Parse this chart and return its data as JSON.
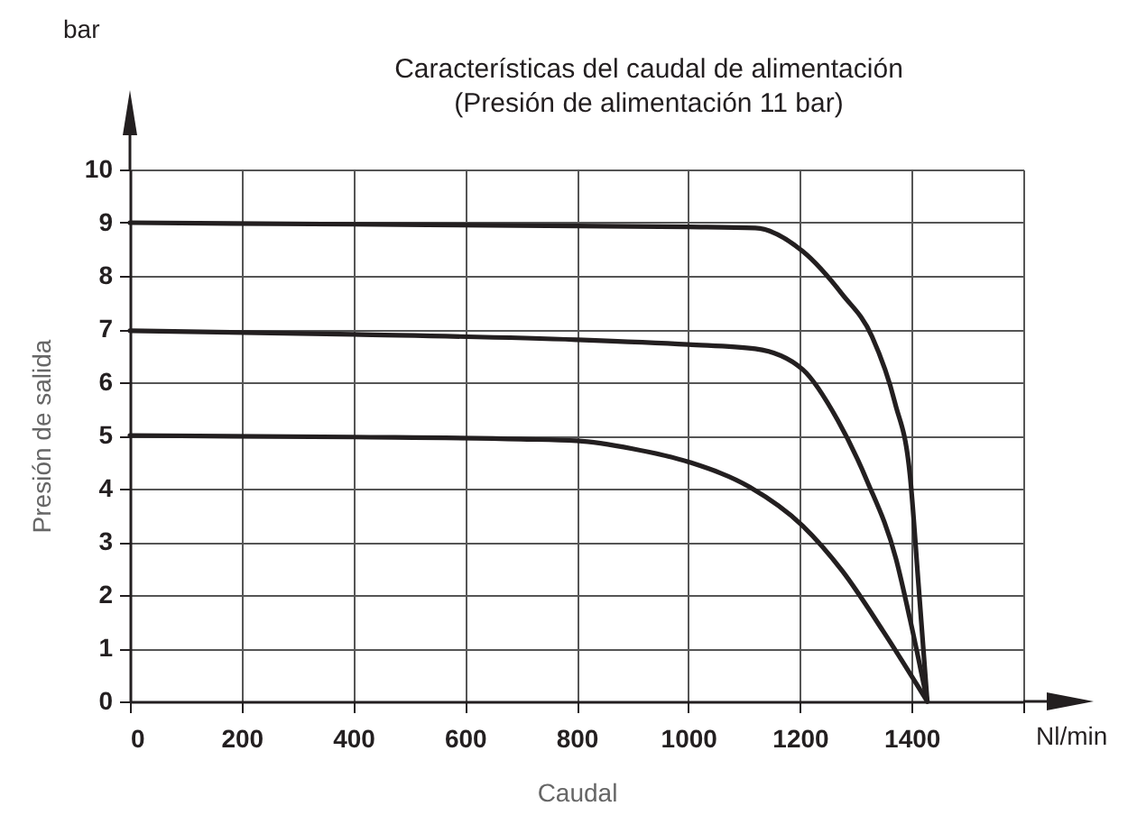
{
  "chart_data": {
    "type": "line",
    "title": "Características del caudal de alimentación",
    "subtitle": "(Presión de alimentación 11 bar)",
    "xlabel": "Caudal",
    "ylabel": "Presión de salida",
    "annotations": [
      "bar",
      "Nl/min"
    ],
    "xlim": [
      0,
      1600
    ],
    "ylim": [
      0,
      10
    ],
    "xticks": [
      0,
      200,
      400,
      600,
      800,
      1000,
      1200,
      1400,
      {
        "value": 1600,
        "label": null
      }
    ],
    "yticks": [
      0,
      1,
      2,
      3,
      4,
      5,
      6,
      7,
      8,
      9,
      10
    ],
    "grid": true,
    "legend": false,
    "marker": "none",
    "line_style": "solid",
    "series": [
      {
        "color": "#231f20",
        "x": [
          0,
          400,
          800,
          1000,
          1120,
          1205,
          1276,
          1329,
          1370,
          1397,
          1412,
          1428
        ],
        "values": [
          9.0,
          8.97,
          8.94,
          8.92,
          8.9,
          8.46,
          7.65,
          6.86,
          5.62,
          4.26,
          2.24,
          0
        ]
      },
      {
        "color": "#231f20",
        "x": [
          0,
          400,
          800,
          1000,
          1120,
          1205,
          1268,
          1320,
          1372,
          1397,
          1428
        ],
        "values": [
          6.97,
          6.9,
          6.8,
          6.71,
          6.63,
          6.24,
          5.28,
          4.15,
          2.68,
          1.55,
          0
        ]
      },
      {
        "color": "#231f20",
        "x": [
          0,
          400,
          700,
          800,
          900,
          1004,
          1110,
          1205,
          1276,
          1349,
          1428
        ],
        "values": [
          5,
          4.97,
          4.93,
          4.9,
          4.75,
          4.49,
          4.03,
          3.3,
          2.45,
          1.32,
          0
        ]
      }
    ]
  }
}
